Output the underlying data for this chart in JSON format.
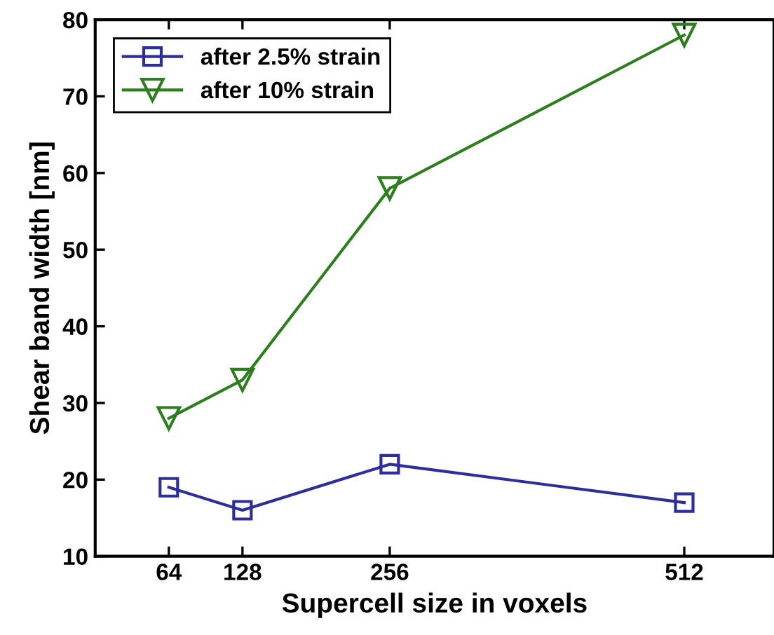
{
  "chart_data": {
    "type": "line",
    "xlabel": "Supercell size in voxels",
    "ylabel": "Shear band width [nm]",
    "x": [
      64,
      128,
      256,
      512
    ],
    "series": [
      {
        "name": "after 2.5% strain",
        "color": "#2e2e9a",
        "marker": "square",
        "values": [
          19,
          16,
          22,
          17
        ]
      },
      {
        "name": "after 10% strain",
        "color": "#2e7d1e",
        "marker": "triangle",
        "values": [
          28,
          33,
          58,
          78
        ]
      }
    ],
    "xlim": [
      0,
      590
    ],
    "xticks": [
      64,
      128,
      256,
      512
    ],
    "ylim": [
      10,
      80
    ],
    "yticks": [
      10,
      20,
      30,
      40,
      50,
      60,
      70,
      80
    ],
    "legend": "top left",
    "line_style": "solid"
  }
}
